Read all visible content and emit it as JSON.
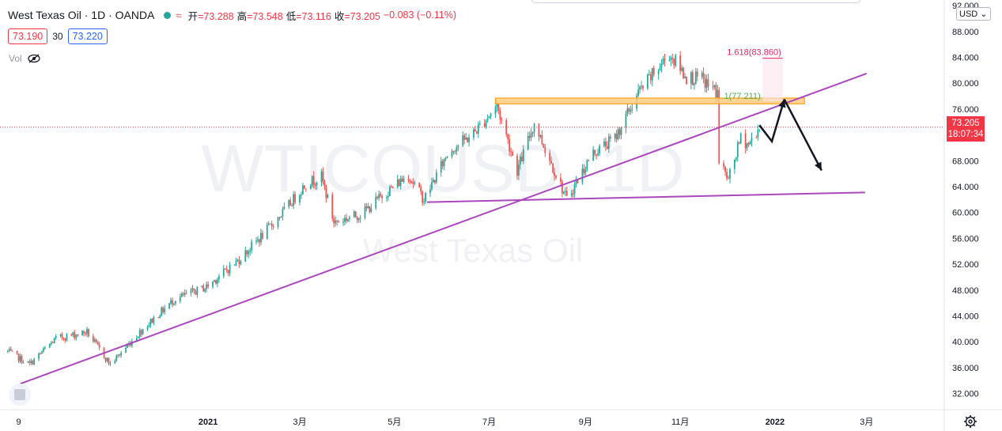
{
  "header": {
    "symbol": "West Texas Oil · 1D · OANDA",
    "wave_icon": "≈",
    "open_label": "开",
    "open": "=73.288",
    "high_label": "高",
    "high": "=73.548",
    "low_label": "低",
    "low": "=73.116",
    "close_label": "收",
    "close": "=73.205",
    "change": "−0.083 (−0.11%)"
  },
  "quote": {
    "sell": "73.190",
    "spread": "30",
    "buy": "73.220"
  },
  "volume": {
    "label": "Vol",
    "icon": "eye-slash-icon"
  },
  "price_axis": {
    "currency": "USD",
    "last_price": "73.205",
    "countdown": "18:07:34"
  },
  "watermark": {
    "ticker": "WTICOUSD, 1D",
    "name": "West Texas Oil"
  },
  "colors": {
    "up": "#26a69a",
    "down": "#ef5350",
    "trendline": "#ab47bc",
    "resistance_fill": "#ffcc80",
    "resistance_border": "#ff9800",
    "fib_1618": "#e91e63",
    "fib_1": "#4caf50",
    "last_price": "#f23645"
  },
  "chart_data": {
    "type": "candlestick",
    "interval": "1D",
    "x_tick_labels": [
      {
        "date": "2020-09-01",
        "label": "9"
      },
      {
        "date": "2021-01-01",
        "label": "2021"
      },
      {
        "date": "2021-03-01",
        "label": "3月"
      },
      {
        "date": "2021-05-01",
        "label": "5月"
      },
      {
        "date": "2021-07-01",
        "label": "7月"
      },
      {
        "date": "2021-09-01",
        "label": "9月"
      },
      {
        "date": "2021-11-01",
        "label": "11月"
      },
      {
        "date": "2022-01-01",
        "label": "2022"
      },
      {
        "date": "2022-03-01",
        "label": "3月"
      }
    ],
    "y_ticks": [
      "32.000",
      "36.000",
      "40.000",
      "44.000",
      "48.000",
      "52.000",
      "56.000",
      "60.000",
      "64.000",
      "68.000",
      "72.000",
      "76.000",
      "80.000",
      "84.000",
      "88.000",
      "92.000"
    ],
    "ylim": [
      29.5,
      92.5
    ],
    "xlim": [
      "2020-08-20",
      "2022-04-20"
    ],
    "price_path": [
      [
        "2020-08-25",
        38.5
      ],
      [
        "2020-09-08",
        36.5
      ],
      [
        "2020-09-25",
        40.5
      ],
      [
        "2020-10-15",
        41.5
      ],
      [
        "2020-10-30",
        36.5
      ],
      [
        "2020-11-20",
        42.0
      ],
      [
        "2020-12-10",
        46.5
      ],
      [
        "2020-12-31",
        48.5
      ],
      [
        "2021-01-20",
        52.5
      ],
      [
        "2021-02-05",
        56.5
      ],
      [
        "2021-02-20",
        60.5
      ],
      [
        "2021-03-05",
        64.5
      ],
      [
        "2021-03-15",
        65.5
      ],
      [
        "2021-03-23",
        58.5
      ],
      [
        "2021-04-10",
        59.8
      ],
      [
        "2021-04-25",
        63.0
      ],
      [
        "2021-05-10",
        65.8
      ],
      [
        "2021-05-20",
        62.0
      ],
      [
        "2021-06-05",
        69.5
      ],
      [
        "2021-06-20",
        72.0
      ],
      [
        "2021-07-06",
        76.5
      ],
      [
        "2021-07-19",
        66.5
      ],
      [
        "2021-07-30",
        73.8
      ],
      [
        "2021-08-20",
        62.0
      ],
      [
        "2021-09-05",
        69.0
      ],
      [
        "2021-09-20",
        71.5
      ],
      [
        "2021-10-05",
        78.5
      ],
      [
        "2021-10-25",
        84.5
      ],
      [
        "2021-11-05",
        81.0
      ],
      [
        "2021-11-15",
        80.5
      ],
      [
        "2021-11-25",
        78.5
      ],
      [
        "2021-11-26",
        68.0
      ],
      [
        "2021-12-02",
        65.0
      ],
      [
        "2021-12-10",
        71.5
      ],
      [
        "2021-12-15",
        70.5
      ],
      [
        "2021-12-22",
        73.2
      ]
    ],
    "annotations": {
      "resistance_zone": {
        "from": "2021-07-05",
        "to": "2022-01-20",
        "low": 76.8,
        "high": 77.7
      },
      "fib_1618": {
        "label": "1.618(83.860)",
        "price": 83.86,
        "from": "2021-12-24",
        "to": "2022-01-06"
      },
      "fib_1": {
        "label": "1(77.211)",
        "price": 77.211
      },
      "rising_trendline": {
        "from": [
          "2020-09-02",
          33.5
        ],
        "to": [
          "2022-03-01",
          81.5
        ]
      },
      "support_line": {
        "from": [
          "2021-05-22",
          61.6
        ],
        "to": [
          "2022-02-28",
          63.1
        ]
      },
      "projection_arrows": [
        [
          [
            "2021-12-22",
            73.5
          ],
          [
            "2021-12-30",
            71.0
          ],
          [
            "2022-01-07",
            77.5
          ]
        ],
        [
          [
            "2022-01-07",
            77.5
          ],
          [
            "2022-01-31",
            66.5
          ]
        ]
      ],
      "last_price_line": 73.205
    }
  }
}
